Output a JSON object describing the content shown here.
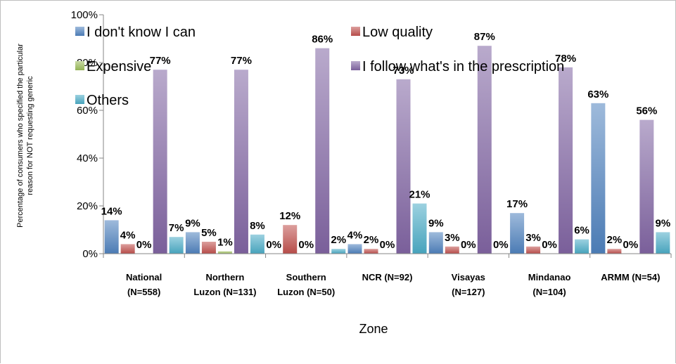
{
  "chart_data": {
    "type": "bar",
    "xlabel": "Zone",
    "ylabel_lines": [
      "Percentage of consumers who specified  the particular",
      "reason for NOT requesting generic"
    ],
    "ylim": [
      0,
      100
    ],
    "yticks": [
      "0%",
      "20%",
      "40%",
      "60%",
      "80%",
      "100%"
    ],
    "grid": false,
    "legend_position": "top-left, overlapping plot",
    "categories": [
      [
        "National",
        "(N=558)"
      ],
      [
        "Northern",
        "Luzon (N=131)"
      ],
      [
        "Southern",
        "Luzon (N=50)"
      ],
      [
        "NCR (N=92)"
      ],
      [
        "Visayas",
        "(N=127)"
      ],
      [
        "Mindanao",
        "(N=104)"
      ],
      [
        "ARMM (N=54)"
      ]
    ],
    "series": [
      {
        "name": "I don't know I can",
        "color": "#4f81bd",
        "values": [
          14,
          9,
          0,
          4,
          9,
          17,
          63
        ],
        "labels": [
          "14%",
          "9%",
          "0%",
          "4%",
          "9%",
          "17%",
          "63%"
        ]
      },
      {
        "name": "Low quality",
        "color": "#c0504d",
        "values": [
          4,
          5,
          12,
          2,
          3,
          3,
          2
        ],
        "labels": [
          "4%",
          "5%",
          "12%",
          "2%",
          "3%",
          "3%",
          "2%"
        ]
      },
      {
        "name": "Expensive",
        "color": "#9bbb59",
        "values": [
          0,
          1,
          0,
          0,
          0,
          0,
          0
        ],
        "labels": [
          "0%",
          "1%",
          "0%",
          "0%",
          "0%",
          "0%",
          "0%"
        ]
      },
      {
        "name": "I follow what's in the prescription",
        "color": "#8064a2",
        "values": [
          77,
          77,
          86,
          73,
          87,
          78,
          56
        ],
        "labels": [
          "77%",
          "77%",
          "86%",
          "73%",
          "87%",
          "78%",
          "56%"
        ]
      },
      {
        "name": "Others",
        "color": "#4bacc6",
        "values": [
          7,
          8,
          2,
          21,
          0,
          6,
          9
        ],
        "labels": [
          "7%",
          "8%",
          "2%",
          "21%",
          "0%",
          "6%",
          "9%"
        ]
      }
    ]
  }
}
